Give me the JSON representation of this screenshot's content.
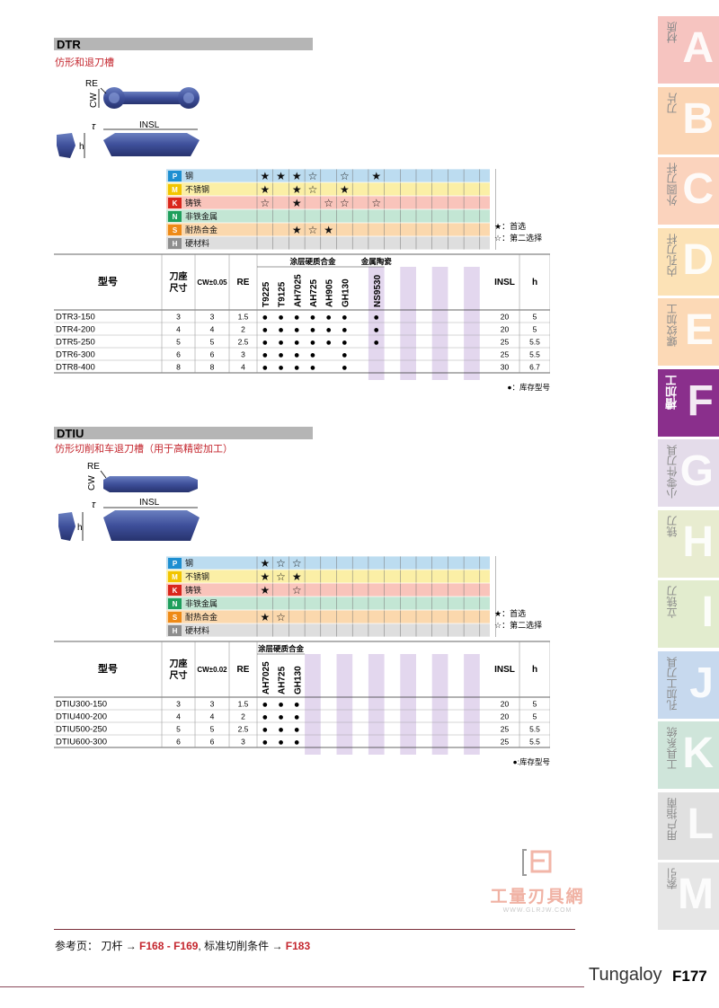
{
  "sections": [
    {
      "code": "DTR",
      "subtitle": "仿形和退刀槽",
      "dims": {
        "re": "RE",
        "cw": "CW",
        "insl": "INSL",
        "h": "h",
        "tau": "τ"
      },
      "materials": [
        {
          "code": "P",
          "name": "钢",
          "color": "#bcdcf0",
          "badge": "#1d8fd1"
        },
        {
          "code": "M",
          "name": "不锈钢",
          "color": "#fbefa6",
          "badge": "#f2c500"
        },
        {
          "code": "K",
          "name": "铸铁",
          "color": "#f9c4bb",
          "badge": "#d9261c"
        },
        {
          "code": "N",
          "name": "非铁金属",
          "color": "#c3e6d4",
          "badge": "#1e9f5c"
        },
        {
          "code": "S",
          "name": "耐热合金",
          "color": "#fbd8ad",
          "badge": "#ee8a17"
        },
        {
          "code": "H",
          "name": "硬材料",
          "color": "#dedede",
          "badge": "#8e8e8e"
        }
      ],
      "grade_groups": [
        {
          "label": "涂层硬质合金",
          "grades": [
            "T9225",
            "T9125",
            "AH7025",
            "AH725",
            "AH905",
            "GH130"
          ]
        },
        {
          "label": "金属陶瓷",
          "grades": [
            "NS9530"
          ]
        }
      ],
      "ratings": [
        [
          "★",
          "★",
          "★",
          "☆",
          "",
          "☆",
          "",
          "★"
        ],
        [
          "★",
          "",
          "★",
          "☆",
          "",
          "★",
          "",
          ""
        ],
        [
          "☆",
          "",
          "★",
          "",
          "☆",
          "☆",
          "",
          "☆"
        ],
        [
          "",
          "",
          "",
          "",
          "",
          "",
          "",
          ""
        ],
        [
          "",
          "",
          "★",
          "☆",
          "★",
          "",
          "",
          ""
        ],
        [
          "",
          "",
          "",
          "",
          "",
          "",
          "",
          ""
        ]
      ],
      "legend": {
        "first": "★：首选",
        "second": "☆：第二选择",
        "stock": "●：库存型号"
      },
      "headers": {
        "model": "型号",
        "holder": "刀座尺寸",
        "cw": "CW±0.05",
        "re": "RE",
        "insl": "INSL",
        "h": "h"
      },
      "rows": [
        {
          "model": "DTR3-150",
          "holder": "3",
          "cw": "3",
          "re": "1.5",
          "stock": [
            "●",
            "●",
            "●",
            "●",
            "●",
            "●",
            "",
            "●"
          ],
          "insl": "20",
          "h": "5"
        },
        {
          "model": "DTR4-200",
          "holder": "4",
          "cw": "4",
          "re": "2",
          "stock": [
            "●",
            "●",
            "●",
            "●",
            "●",
            "●",
            "",
            "●"
          ],
          "insl": "20",
          "h": "5"
        },
        {
          "model": "DTR5-250",
          "holder": "5",
          "cw": "5",
          "re": "2.5",
          "stock": [
            "●",
            "●",
            "●",
            "●",
            "●",
            "●",
            "",
            "●"
          ],
          "insl": "25",
          "h": "5.5"
        },
        {
          "model": "DTR6-300",
          "holder": "6",
          "cw": "6",
          "re": "3",
          "stock": [
            "●",
            "●",
            "●",
            "●",
            "",
            "●",
            "",
            ""
          ],
          "insl": "25",
          "h": "5.5"
        },
        {
          "model": "DTR8-400",
          "holder": "8",
          "cw": "8",
          "re": "4",
          "stock": [
            "●",
            "●",
            "●",
            "●",
            "",
            "●",
            "",
            ""
          ],
          "insl": "30",
          "h": "6.7"
        }
      ]
    },
    {
      "code": "DTIU",
      "subtitle": "仿形切削和车退刀槽（用于高精密加工）",
      "dims": {
        "re": "RE",
        "cw": "CW",
        "insl": "INSL",
        "h": "h",
        "tau": "τ"
      },
      "materials": [
        {
          "code": "P",
          "name": "钢",
          "color": "#bcdcf0",
          "badge": "#1d8fd1"
        },
        {
          "code": "M",
          "name": "不锈钢",
          "color": "#fbefa6",
          "badge": "#f2c500"
        },
        {
          "code": "K",
          "name": "铸铁",
          "color": "#f9c4bb",
          "badge": "#d9261c"
        },
        {
          "code": "N",
          "name": "非铁金属",
          "color": "#c3e6d4",
          "badge": "#1e9f5c"
        },
        {
          "code": "S",
          "name": "耐热合金",
          "color": "#fbd8ad",
          "badge": "#ee8a17"
        },
        {
          "code": "H",
          "name": "硬材料",
          "color": "#dedede",
          "badge": "#8e8e8e"
        }
      ],
      "grade_groups": [
        {
          "label": "涂层硬质合金",
          "grades": [
            "AH7025",
            "AH725",
            "GH130"
          ]
        }
      ],
      "ratings": [
        [
          "★",
          "☆",
          "☆"
        ],
        [
          "★",
          "☆",
          "★"
        ],
        [
          "★",
          "",
          "☆"
        ],
        [
          "",
          "",
          ""
        ],
        [
          "★",
          "☆",
          ""
        ],
        [
          "",
          "",
          ""
        ]
      ],
      "legend": {
        "first": "★：首选",
        "second": "☆：第二选择",
        "stock": "●:库存型号"
      },
      "headers": {
        "model": "型号",
        "holder": "刀座尺寸",
        "cw": "CW±0.02",
        "re": "RE",
        "insl": "INSL",
        "h": "h"
      },
      "rows": [
        {
          "model": "DTIU300-150",
          "holder": "3",
          "cw": "3",
          "re": "1.5",
          "stock": [
            "●",
            "●",
            "●"
          ],
          "insl": "20",
          "h": "5"
        },
        {
          "model": "DTIU400-200",
          "holder": "4",
          "cw": "4",
          "re": "2",
          "stock": [
            "●",
            "●",
            "●"
          ],
          "insl": "20",
          "h": "5"
        },
        {
          "model": "DTIU500-250",
          "holder": "5",
          "cw": "5",
          "re": "2.5",
          "stock": [
            "●",
            "●",
            "●"
          ],
          "insl": "25",
          "h": "5.5"
        },
        {
          "model": "DTIU600-300",
          "holder": "6",
          "cw": "6",
          "re": "3",
          "stock": [
            "●",
            "●",
            "●"
          ],
          "insl": "25",
          "h": "5.5"
        }
      ]
    }
  ],
  "tabs": [
    {
      "letter": "A",
      "label": "材质",
      "color": "#f6c4c0",
      "active": false
    },
    {
      "letter": "B",
      "label": "刀片",
      "color": "#fbd5b4",
      "active": false
    },
    {
      "letter": "C",
      "label": "外圆刀杆",
      "color": "#fbd3bd",
      "active": false
    },
    {
      "letter": "D",
      "label": "内孔刀杆",
      "color": "#fce2b6",
      "active": false
    },
    {
      "letter": "E",
      "label": "螺纹加工",
      "color": "#fcd9b6",
      "active": false
    },
    {
      "letter": "F",
      "label": "槽加工",
      "color": "#8a2f8c",
      "active": true
    },
    {
      "letter": "G",
      "label": "小零件刀具",
      "color": "#e4dcea",
      "active": false
    },
    {
      "letter": "H",
      "label": "铣刀",
      "color": "#e8ecd0",
      "active": false
    },
    {
      "letter": "I",
      "label": "立铣刀",
      "color": "#e2ecce",
      "active": false
    },
    {
      "letter": "J",
      "label": "孔加工刀具",
      "color": "#c7d9ee",
      "active": false
    },
    {
      "letter": "K",
      "label": "工具系统",
      "color": "#cfe5da",
      "active": false
    },
    {
      "letter": "L",
      "label": "用户指南",
      "color": "#e0e0e0",
      "active": false
    },
    {
      "letter": "M",
      "label": "索引",
      "color": "#e6e6e6",
      "active": false
    }
  ],
  "watermark": {
    "brand": "工量刃具網",
    "url": "WWW.GLRJW.COM"
  },
  "reference": {
    "prefix": "参考页：",
    "item1": "刀杆 →",
    "link1": "F168 - F169",
    "sep": ",",
    "item2": "标准切削条件 →",
    "link2": "F183"
  },
  "footer": {
    "brand": "Tungaloy",
    "page": "F177"
  }
}
